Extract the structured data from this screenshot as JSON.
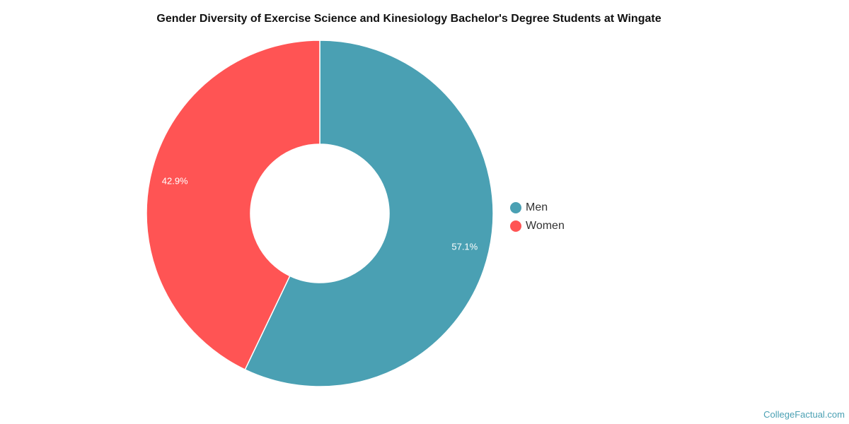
{
  "chart_data": {
    "type": "pie",
    "variant": "donut",
    "title": "Gender Diversity of Exercise Science and Kinesiology Bachelor's Degree Students at Wingate",
    "categories": [
      "Men",
      "Women"
    ],
    "values": [
      57.1,
      42.9
    ],
    "labels": [
      "57.1%",
      "42.9%"
    ],
    "colors": [
      "#4aa0b3",
      "#ff5454"
    ],
    "legend_position": "right"
  },
  "watermark": "CollegeFactual.com"
}
